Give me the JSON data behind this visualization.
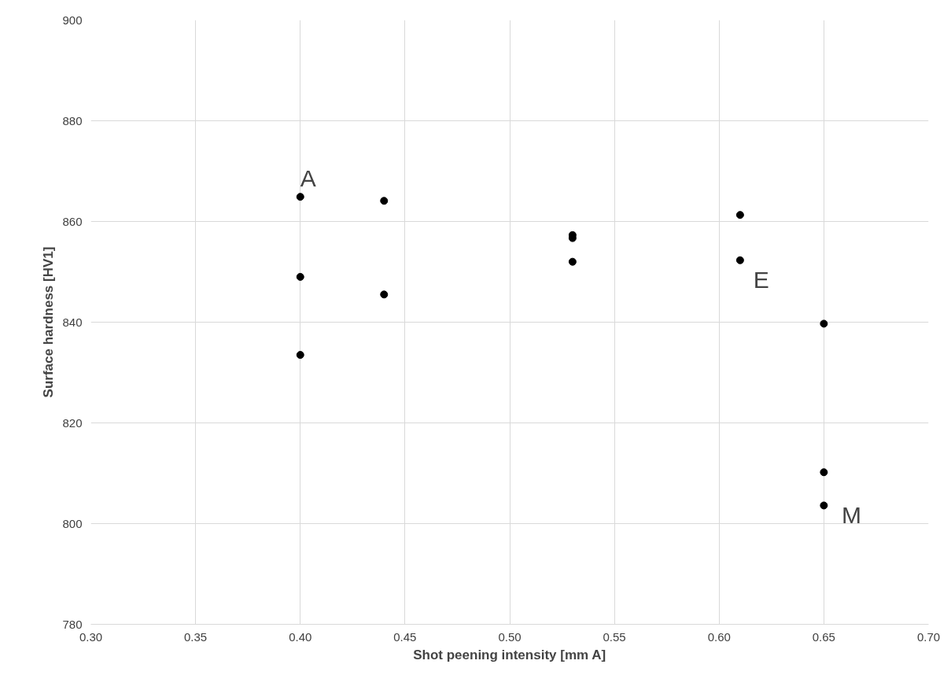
{
  "chart_data": {
    "type": "scatter",
    "xlabel": "Shot peening intensity [mm A]",
    "ylabel": "Surface hardness [HV1]",
    "x": [
      0.4,
      0.4,
      0.4,
      0.44,
      0.44,
      0.53,
      0.53,
      0.53,
      0.61,
      0.61,
      0.65,
      0.65,
      0.65
    ],
    "series": [
      {
        "color": "#000000",
        "values": [
          864.9,
          849.0,
          833.5,
          864.1,
          845.5,
          857.3,
          856.7,
          852.0,
          861.3,
          852.3,
          839.7,
          810.2,
          803.6
        ]
      }
    ],
    "xlim": [
      0.3,
      0.7
    ],
    "xticks": [
      {
        "value": 0.3,
        "label": "0.30"
      },
      {
        "value": 0.35,
        "label": "0.35"
      },
      {
        "value": 0.4,
        "label": "0.40"
      },
      {
        "value": 0.45,
        "label": "0.45"
      },
      {
        "value": 0.5,
        "label": "0.50"
      },
      {
        "value": 0.55,
        "label": "0.55"
      },
      {
        "value": 0.6,
        "label": "0.60"
      },
      {
        "value": 0.65,
        "label": "0.65"
      },
      {
        "value": 0.7,
        "label": "0.70"
      }
    ],
    "ylim": [
      780,
      900
    ],
    "yticks": [
      780,
      800,
      820,
      840,
      860,
      880,
      900
    ],
    "annotations": [
      {
        "text": "A",
        "x": 0.4,
        "y": 864.9
      },
      {
        "text": "E",
        "x": 0.61,
        "y": 852.3
      },
      {
        "text": "M",
        "x": 0.65,
        "y": 803.6
      }
    ],
    "grid": true,
    "marker": "circle"
  }
}
